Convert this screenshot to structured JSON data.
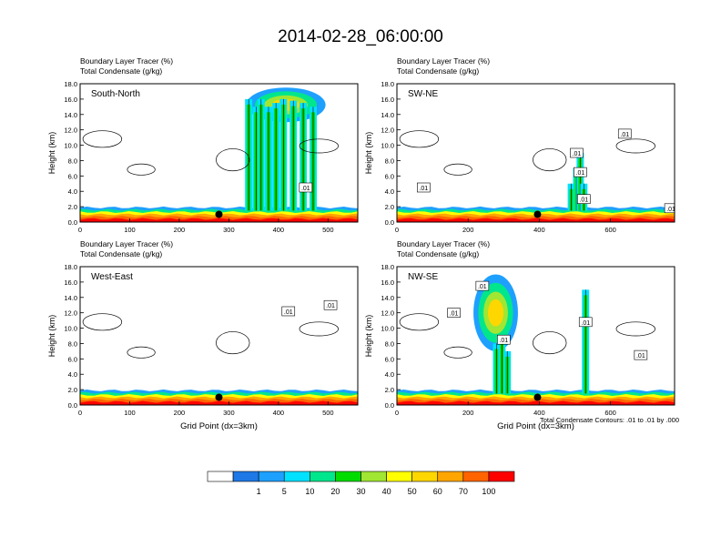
{
  "title": "2014-02-28_06:00:00",
  "colors": {
    "scale": [
      "#ffffff",
      "#1e78e6",
      "#1ea0ff",
      "#00e1ff",
      "#00e68c",
      "#00dc00",
      "#a0e632",
      "#ffff00",
      "#ffd700",
      "#ffa500",
      "#ff6400",
      "#ff0000"
    ],
    "contour": "#000000",
    "marker": "#000000"
  },
  "legend": {
    "labels": [
      "1",
      "5",
      "10",
      "20",
      "30",
      "40",
      "50",
      "60",
      "70",
      "100"
    ]
  },
  "contour_note": "Total Condensate Contours: .01 to .01 by .000",
  "chart_data": [
    {
      "type": "heatmap",
      "panel": "South-North",
      "header_lines": [
        "Boundary Layer Tracer   (%)",
        "Total Condensate   (g/kg)"
      ],
      "ylabel": "Height (km)",
      "xlabel": "",
      "xlim": [
        0,
        560
      ],
      "ylim": [
        0,
        18
      ],
      "xticks": [
        "0",
        "100",
        "200",
        "300",
        "400",
        "500"
      ],
      "xtick_values": [
        0,
        100,
        200,
        300,
        400,
        500
      ],
      "yticks": [
        "0.0",
        "2.0",
        "4.0",
        "6.0",
        "8.0",
        "10.0",
        "12.0",
        "14.0",
        "16.0",
        "18.0"
      ],
      "marker": {
        "x": 280,
        "y": 1.0
      },
      "contour_labels": [
        {
          "text": ".01",
          "x": 455,
          "y": 4.5
        }
      ],
      "tracer_plumes": [
        [
          340,
          16
        ],
        [
          355,
          15
        ],
        [
          365,
          16
        ],
        [
          380,
          15
        ],
        [
          395,
          15.5
        ],
        [
          410,
          16
        ],
        [
          430,
          15.8
        ],
        [
          450,
          15.5
        ],
        [
          470,
          15
        ]
      ],
      "tracer_anvil": {
        "x0": 335,
        "x1": 495,
        "y0": 13,
        "y1": 17.5
      }
    },
    {
      "type": "heatmap",
      "panel": "SW-NE",
      "header_lines": [
        "Boundary Layer Tracer   (%)",
        "Total Condensate   (g/kg)"
      ],
      "ylabel": "Height (km)",
      "xlabel": "",
      "xlim": [
        0,
        780
      ],
      "ylim": [
        0,
        18
      ],
      "xticks": [
        "0",
        "200",
        "400",
        "600"
      ],
      "xtick_values": [
        0,
        200,
        400,
        600
      ],
      "yticks": [
        "0.0",
        "2.0",
        "4.0",
        "6.0",
        "8.0",
        "10.0",
        "12.0",
        "14.0",
        "16.0",
        "18.0"
      ],
      "marker": {
        "x": 395,
        "y": 1.0
      },
      "contour_labels": [
        {
          "text": ".01",
          "x": 75,
          "y": 4.5
        },
        {
          "text": ".01",
          "x": 505,
          "y": 9.0
        },
        {
          "text": ".01",
          "x": 515,
          "y": 6.5
        },
        {
          "text": ".01",
          "x": 525,
          "y": 3.0
        },
        {
          "text": ".01",
          "x": 640,
          "y": 11.5
        },
        {
          "text": ".01",
          "x": 770,
          "y": 1.8
        }
      ],
      "tracer_plumes": [
        [
          490,
          5
        ],
        [
          505,
          7
        ],
        [
          515,
          9
        ],
        [
          525,
          5
        ]
      ],
      "tracer_anvil": null
    },
    {
      "type": "heatmap",
      "panel": "West-East",
      "header_lines": [
        "Boundary Layer Tracer   (%)",
        "Total Condensate   (g/kg)"
      ],
      "ylabel": "Height (km)",
      "xlabel": "Grid Point (dx=3km)",
      "xlim": [
        0,
        560
      ],
      "ylim": [
        0,
        18
      ],
      "xticks": [
        "0",
        "100",
        "200",
        "300",
        "400",
        "500"
      ],
      "xtick_values": [
        0,
        100,
        200,
        300,
        400,
        500
      ],
      "yticks": [
        "0.0",
        "2.0",
        "4.0",
        "6.0",
        "8.0",
        "10.0",
        "12.0",
        "14.0",
        "16.0",
        "18.0"
      ],
      "marker": {
        "x": 280,
        "y": 1.0
      },
      "contour_labels": [
        {
          "text": ".01",
          "x": 420,
          "y": 12.2
        },
        {
          "text": ".01",
          "x": 505,
          "y": 13.0
        }
      ],
      "tracer_plumes": [],
      "tracer_anvil": null
    },
    {
      "type": "heatmap",
      "panel": "NW-SE",
      "header_lines": [
        "Boundary Layer Tracer   (%)",
        "Total Condensate   (g/kg)"
      ],
      "ylabel": "Height (km)",
      "xlabel": "Grid Point (dx=3km)",
      "xlim": [
        0,
        780
      ],
      "ylim": [
        0,
        18
      ],
      "xticks": [
        "0",
        "200",
        "400",
        "600"
      ],
      "xtick_values": [
        0,
        200,
        400,
        600
      ],
      "yticks": [
        "0.0",
        "2.0",
        "4.0",
        "6.0",
        "8.0",
        "10.0",
        "12.0",
        "14.0",
        "16.0",
        "18.0"
      ],
      "marker": {
        "x": 395,
        "y": 1.0
      },
      "contour_labels": [
        {
          "text": ".01",
          "x": 160,
          "y": 12.0
        },
        {
          "text": ".01",
          "x": 240,
          "y": 15.5
        },
        {
          "text": ".01",
          "x": 300,
          "y": 8.5
        },
        {
          "text": ".01",
          "x": 530,
          "y": 10.8
        },
        {
          "text": ".01",
          "x": 685,
          "y": 6.5
        }
      ],
      "tracer_plumes": [
        [
          280,
          8
        ],
        [
          295,
          9
        ],
        [
          310,
          7
        ],
        [
          530,
          15
        ]
      ],
      "tracer_anvil": {
        "x0": 215,
        "x1": 340,
        "y0": 7,
        "y1": 17
      }
    }
  ]
}
